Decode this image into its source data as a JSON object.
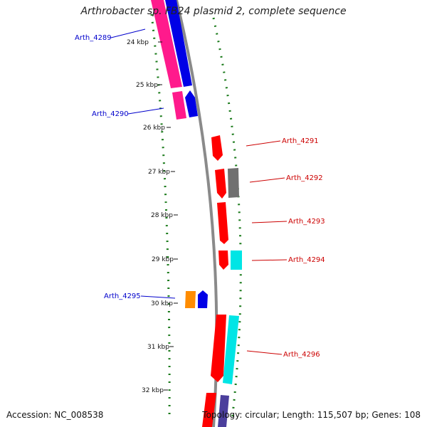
{
  "title": "Arthrobacter sp. FB24 plasmid 2, complete sequence",
  "footer": {
    "accession": "Accession: NC_008538",
    "topology": "Topology: circular; Length: 115,507 bp; Genes: 108"
  },
  "colors": {
    "backbone": "#8a8a8a",
    "gc_dots": "#1a7a1a",
    "forward_label": "#cc0000",
    "reverse_label": "#0000cc"
  },
  "ticks": [
    "24 kbp",
    "25 kbp",
    "26 kbp",
    "27 kbp",
    "28 kbp",
    "29 kbp",
    "30 kbp",
    "31 kbp",
    "32 kbp"
  ],
  "gene_labels": [
    {
      "name": "Arth_4289",
      "strand": "reverse"
    },
    {
      "name": "Arth_4290",
      "strand": "reverse"
    },
    {
      "name": "Arth_4291",
      "strand": "forward"
    },
    {
      "name": "Arth_4292",
      "strand": "forward"
    },
    {
      "name": "Arth_4293",
      "strand": "forward"
    },
    {
      "name": "Arth_4294",
      "strand": "forward"
    },
    {
      "name": "Arth_4295",
      "strand": "reverse"
    },
    {
      "name": "Arth_4296",
      "strand": "forward"
    }
  ]
}
